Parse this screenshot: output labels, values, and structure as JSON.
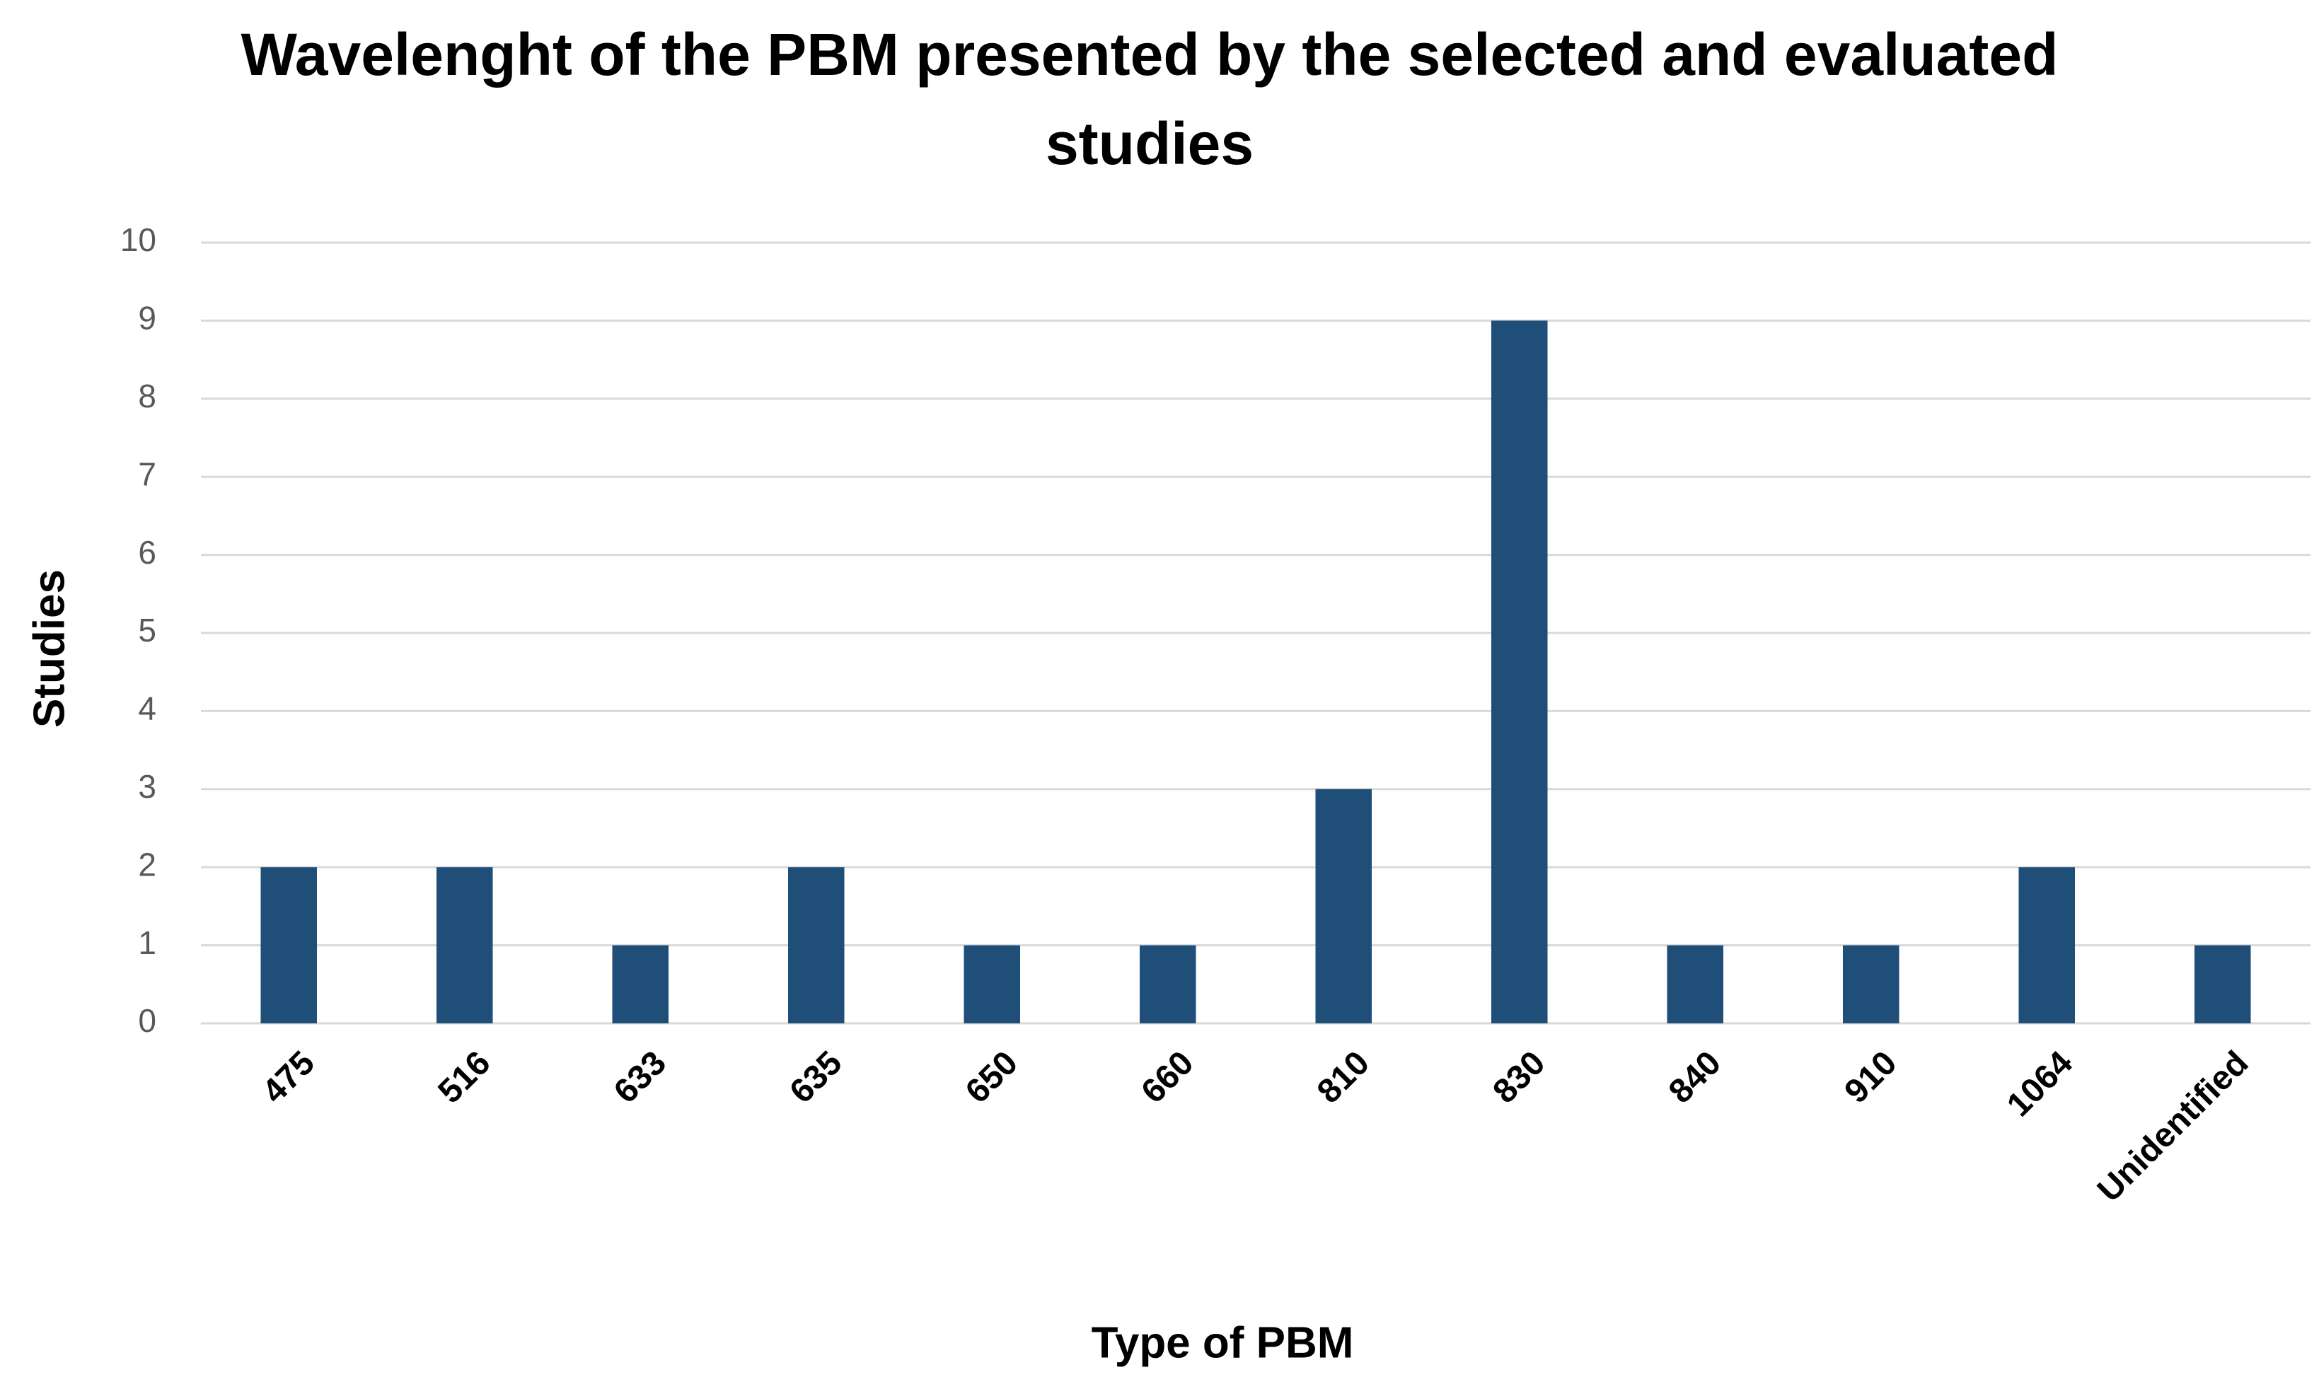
{
  "chart_data": {
    "type": "bar",
    "title": "Wavelenght of the PBM presented by the selected and evaluated studies",
    "x_label": "Type of PBM",
    "y_label": "Studies",
    "categories": [
      "475",
      "516",
      "633",
      "635",
      "650",
      "660",
      "810",
      "830",
      "840",
      "910",
      "1064",
      "Unidentified"
    ],
    "values": [
      2,
      2,
      1,
      2,
      1,
      1,
      3,
      9,
      1,
      1,
      2,
      1
    ],
    "color": "#1f4e79",
    "ylim": [
      0,
      10
    ],
    "yticks": [
      0,
      1,
      2,
      3,
      4,
      5,
      6,
      7,
      8,
      9,
      10
    ],
    "grid": true
  }
}
